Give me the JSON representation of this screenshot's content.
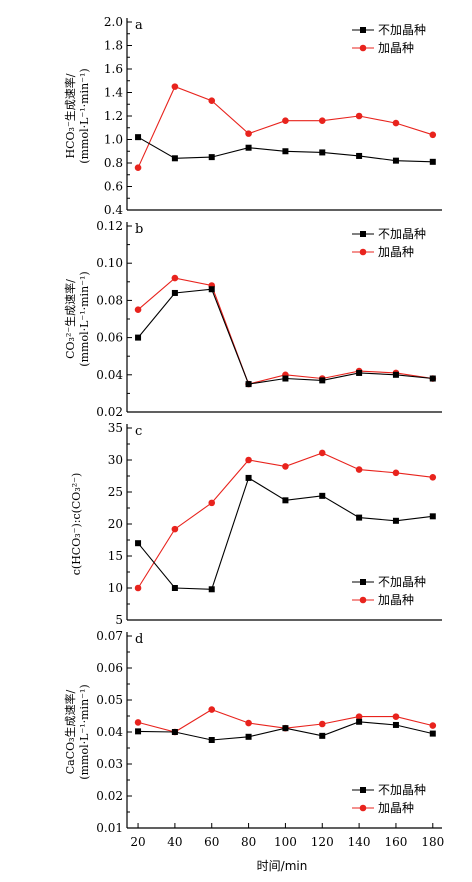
{
  "chart_data": [
    {
      "type": "line",
      "panel_label": "a",
      "ylabel_lines": [
        "HCO₃⁻生成速率/",
        "(mmol·L⁻¹·min⁻¹)"
      ],
      "ylim": [
        0.4,
        2.0
      ],
      "yticks": [
        0.4,
        0.6,
        0.8,
        1.0,
        1.2,
        1.4,
        1.6,
        1.8,
        2.0
      ],
      "ytick_labels": [
        "0.4",
        "0.6",
        "0.8",
        "1.0",
        "1.2",
        "1.4",
        "1.6",
        "1.8",
        "2.0"
      ],
      "legend_position": "top-right",
      "series": [
        {
          "name": "不加晶种",
          "color": "#000000",
          "marker": "square",
          "x": [
            20,
            40,
            60,
            80,
            100,
            120,
            140,
            160,
            180
          ],
          "y": [
            1.02,
            0.84,
            0.85,
            0.93,
            0.9,
            0.89,
            0.86,
            0.82,
            0.81
          ]
        },
        {
          "name": "加晶种",
          "color": "#e8231d",
          "marker": "circle",
          "x": [
            20,
            40,
            60,
            80,
            100,
            120,
            140,
            160,
            180
          ],
          "y": [
            0.76,
            1.45,
            1.33,
            1.05,
            1.16,
            1.16,
            1.2,
            1.14,
            1.04
          ]
        }
      ]
    },
    {
      "type": "line",
      "panel_label": "b",
      "ylabel_lines": [
        "CO₃²⁻生成速率/",
        "(mmol·L⁻¹·min⁻¹)"
      ],
      "ylim": [
        0.02,
        0.12
      ],
      "yticks": [
        0.02,
        0.04,
        0.06,
        0.08,
        0.1,
        0.12
      ],
      "ytick_labels": [
        "0.02",
        "0.04",
        "0.06",
        "0.08",
        "0.10",
        "0.12"
      ],
      "legend_position": "top-right",
      "series": [
        {
          "name": "不加晶种",
          "color": "#000000",
          "marker": "square",
          "x": [
            20,
            40,
            60,
            80,
            100,
            120,
            140,
            160,
            180
          ],
          "y": [
            0.06,
            0.084,
            0.086,
            0.035,
            0.038,
            0.037,
            0.041,
            0.04,
            0.038
          ]
        },
        {
          "name": "加晶种",
          "color": "#e8231d",
          "marker": "circle",
          "x": [
            20,
            40,
            60,
            80,
            100,
            120,
            140,
            160,
            180
          ],
          "y": [
            0.075,
            0.092,
            0.088,
            0.035,
            0.04,
            0.038,
            0.042,
            0.041,
            0.038
          ]
        }
      ]
    },
    {
      "type": "line",
      "panel_label": "c",
      "ylabel_lines": [
        "c(HCO₃⁻):c(CO₃²⁻)"
      ],
      "ylim": [
        5,
        35
      ],
      "yticks": [
        5,
        10,
        15,
        20,
        25,
        30,
        35
      ],
      "ytick_labels": [
        "5",
        "10",
        "15",
        "20",
        "25",
        "30",
        "35"
      ],
      "legend_position": "bottom-right",
      "series": [
        {
          "name": "不加晶种",
          "color": "#000000",
          "marker": "square",
          "x": [
            20,
            40,
            60,
            80,
            100,
            120,
            140,
            160,
            180
          ],
          "y": [
            17.0,
            10.0,
            9.8,
            27.2,
            23.7,
            24.4,
            21.0,
            20.5,
            21.2
          ]
        },
        {
          "name": "加晶种",
          "color": "#e8231d",
          "marker": "circle",
          "x": [
            20,
            40,
            60,
            80,
            100,
            120,
            140,
            160,
            180
          ],
          "y": [
            10.0,
            19.2,
            23.3,
            30.0,
            29.0,
            31.1,
            28.5,
            28.0,
            27.3
          ]
        }
      ]
    },
    {
      "type": "line",
      "panel_label": "d",
      "ylabel_lines": [
        "CaCO₃生成速率/",
        "(mmol·L⁻¹·min⁻¹)"
      ],
      "ylim": [
        0.01,
        0.07
      ],
      "yticks": [
        0.01,
        0.02,
        0.03,
        0.04,
        0.05,
        0.06,
        0.07
      ],
      "ytick_labels": [
        "0.01",
        "0.02",
        "0.03",
        "0.04",
        "0.05",
        "0.06",
        "0.07"
      ],
      "legend_position": "bottom-right",
      "series": [
        {
          "name": "不加晶种",
          "color": "#000000",
          "marker": "square",
          "x": [
            20,
            40,
            60,
            80,
            100,
            120,
            140,
            160,
            180
          ],
          "y": [
            0.0402,
            0.04,
            0.0375,
            0.0385,
            0.0412,
            0.0388,
            0.0432,
            0.0422,
            0.0395
          ]
        },
        {
          "name": "加晶种",
          "color": "#e8231d",
          "marker": "circle",
          "x": [
            20,
            40,
            60,
            80,
            100,
            120,
            140,
            160,
            180
          ],
          "y": [
            0.043,
            0.04,
            0.047,
            0.0428,
            0.0412,
            0.0425,
            0.0448,
            0.0448,
            0.042
          ]
        }
      ]
    }
  ],
  "x_axis": {
    "ticks": [
      20,
      40,
      60,
      80,
      100,
      120,
      140,
      160,
      180
    ],
    "tick_labels": [
      "20",
      "40",
      "60",
      "80",
      "100",
      "120",
      "140",
      "160",
      "180"
    ],
    "xlim": [
      14,
      185
    ],
    "xlabel": "时间/min"
  }
}
